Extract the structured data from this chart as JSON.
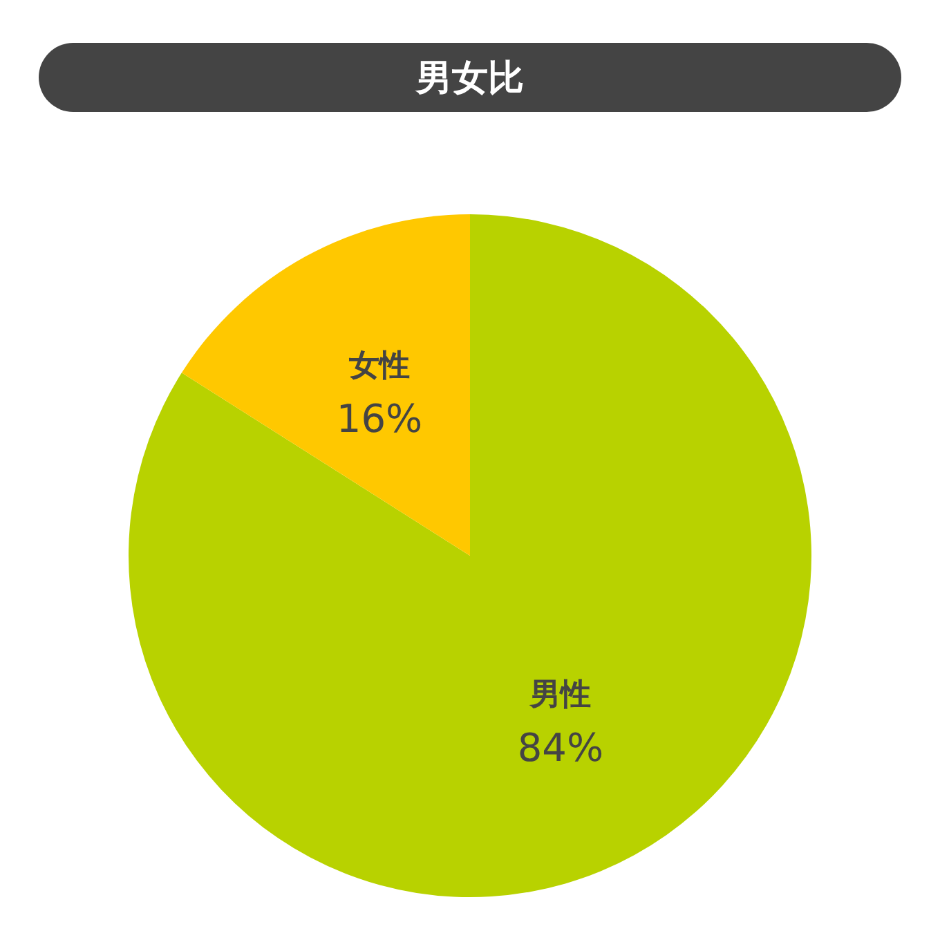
{
  "chart_data": {
    "type": "pie",
    "title": "男女比",
    "categories": [
      "男性",
      "女性"
    ],
    "values": [
      84,
      16
    ],
    "value_labels": [
      "84%",
      "16%"
    ],
    "colors": [
      "#b8d200",
      "#ffc800"
    ]
  }
}
